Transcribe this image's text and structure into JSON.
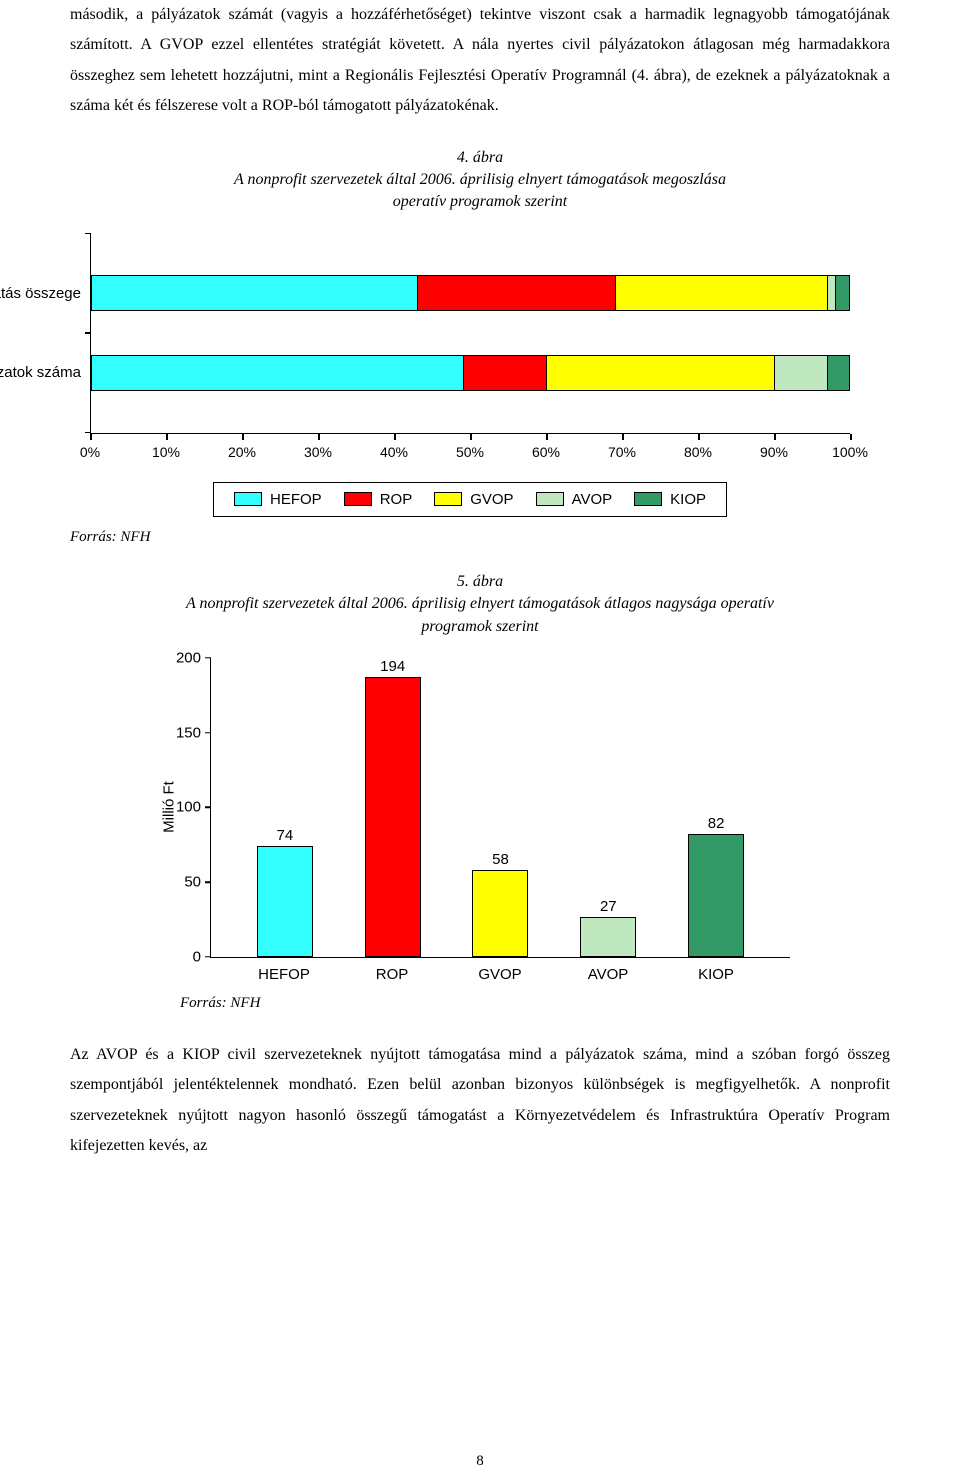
{
  "paragraphs": {
    "p1": "második, a pályázatok számát (vagyis a hozzáférhetőséget) tekintve viszont csak a harmadik legnagyobb támogatójának számított. A GVOP ezzel ellentétes stratégiát követett. A nála nyertes civil pályázatokon átlagosan még harmadakkora összeghez sem lehetett hozzájutni, mint a Regionális Fejlesztési Operatív Programnál (4. ábra), de ezeknek a pályázatoknak a száma két és félszerese volt a ROP-ból támogatott pályázatokénak.",
    "p2": "Az AVOP és a KIOP civil szervezeteknek nyújtott támogatása mind a pályázatok száma, mind a szóban forgó összeg szempontjából jelentéktelennek mondható. Ezen belül azonban bizonyos különbségek is megfigyelhetők. A nonprofit szervezeteknek nyújtott nagyon hasonló összegű támogatást a Környezetvédelem és Infrastruktúra Operatív Program kifejezetten kevés, az"
  },
  "fig4": {
    "caption_num": "4. ábra",
    "caption_line1": "A nonprofit szervezetek által 2006. áprilisig elnyert támogatások megoszlása",
    "caption_line2": "operatív programok szerint",
    "ylabels": [
      "Támogatás összege",
      "Pályázatok száma"
    ],
    "series": [
      "HEFOP",
      "ROP",
      "GVOP",
      "AVOP",
      "KIOP"
    ],
    "colors": [
      "#33ffff",
      "#ff0000",
      "#ffff00",
      "#bfe8c1",
      "#339966"
    ],
    "bar_top": [
      43,
      26,
      28,
      1,
      2
    ],
    "bar_bottom": [
      49,
      11,
      30,
      7,
      3
    ],
    "xticks": [
      "0%",
      "10%",
      "20%",
      "30%",
      "40%",
      "50%",
      "60%",
      "70%",
      "80%",
      "90%",
      "100%"
    ],
    "source": "Forrás: NFH"
  },
  "fig5": {
    "caption_num": "5. ábra",
    "caption_line1": "A nonprofit szervezetek által 2006. áprilisig elnyert támogatások átlagos nagysága operatív",
    "caption_line2": "programok szerint",
    "y_title": "Millió Ft",
    "ymax": 200,
    "yticks": [
      0,
      50,
      100,
      150,
      200
    ],
    "categories": [
      "HEFOP",
      "ROP",
      "GVOP",
      "AVOP",
      "KIOP"
    ],
    "values": [
      74,
      194,
      58,
      27,
      82
    ],
    "colors": [
      "#33ffff",
      "#ff0000",
      "#ffff00",
      "#bfe8c1",
      "#339966"
    ],
    "source": "Forrás: NFH"
  },
  "page_number": "8"
}
